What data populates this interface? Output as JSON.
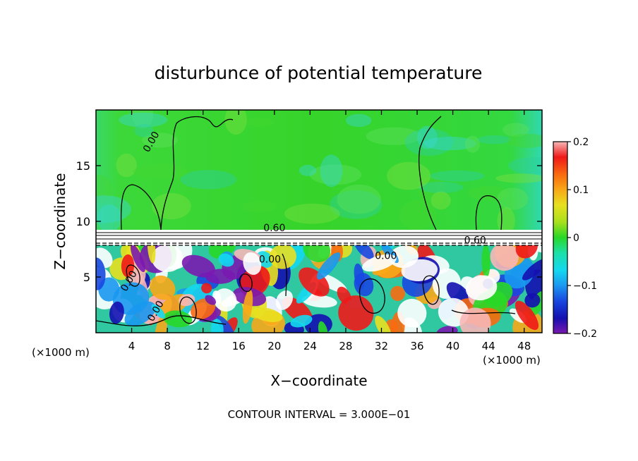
{
  "chart_data": {
    "type": "heatmap",
    "title": "disturbunce of potential temperature",
    "xlabel": "X−coordinate",
    "ylabel": "Z−coordinate",
    "x_unit_left": "(×1000 m)",
    "x_unit_right": "(×1000 m)",
    "xlim": [
      0,
      50
    ],
    "ylim": [
      0,
      20
    ],
    "x_ticks": [
      4,
      8,
      12,
      16,
      20,
      24,
      28,
      32,
      36,
      40,
      44,
      48
    ],
    "y_ticks": [
      5,
      10,
      15
    ],
    "colorbar": {
      "range": [
        -0.2,
        0.2
      ],
      "tick_values": [
        0.2,
        0.1,
        0,
        -0.1,
        -0.2
      ],
      "tick_labels": [
        "0.2",
        "0.1",
        "0",
        "−0.1",
        "−0.2"
      ]
    },
    "contour_labels": [
      {
        "text": "0.00",
        "x": 6.5,
        "z": 17
      },
      {
        "text": "0.60",
        "x": 20,
        "z": 9.1
      },
      {
        "text": "0.60",
        "x": 42.5,
        "z": 8.0
      },
      {
        "text": "0.00",
        "x": 32.5,
        "z": 6.6
      },
      {
        "text": "0.00",
        "x": 19.5,
        "z": 6.3
      },
      {
        "text": "0.00",
        "x": 4,
        "z": 4.5
      },
      {
        "text": "0.00",
        "x": 7,
        "z": 1.8
      }
    ],
    "footer": "CONTOUR INTERVAL = 3.000E−01"
  }
}
